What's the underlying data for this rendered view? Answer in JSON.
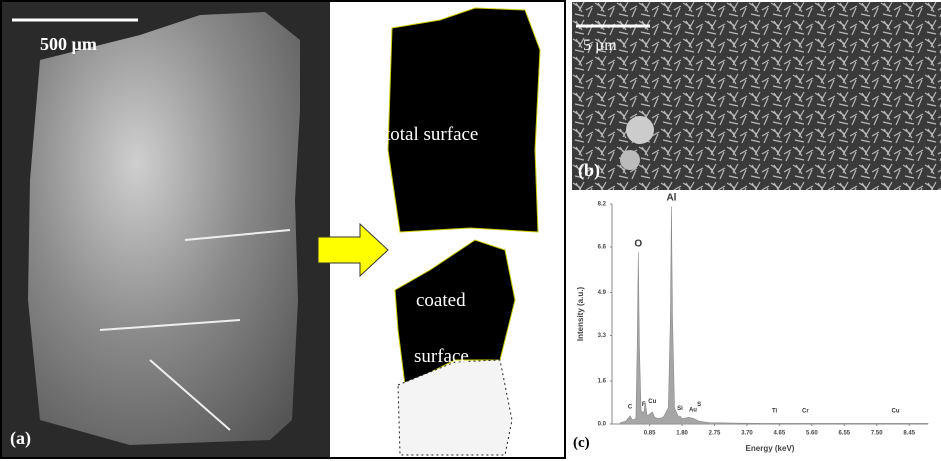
{
  "panel_a": {
    "scale_bar": "500 µm",
    "label": "(a)"
  },
  "segmentation": {
    "top_label": "total surface",
    "bottom_label_1": "coated",
    "bottom_label_2": "surface"
  },
  "panel_b": {
    "scale_bar": "5 µm",
    "label": "(b)"
  },
  "chart_data": {
    "type": "area",
    "panel_label": "(c)",
    "x_label": "Energy (keV)",
    "y_label": "Intensity (a.u.)",
    "color": "#a6a6a6",
    "x": [
      0,
      0.15,
      0.28,
      0.35,
      0.45,
      0.49,
      0.52,
      0.55,
      0.6,
      0.68,
      0.72,
      0.78,
      0.93,
      1.0,
      1.1,
      1.25,
      1.4,
      1.46,
      1.49,
      1.52,
      1.58,
      1.7,
      1.74,
      1.8,
      2.0,
      2.15,
      2.3,
      2.6,
      3.5,
      4.5,
      5.4,
      6.5,
      7.5,
      8.0,
      9.0
    ],
    "values": [
      0.05,
      0.1,
      0.3,
      0.15,
      0.2,
      3.0,
      6.4,
      3.0,
      0.5,
      0.4,
      0.8,
      0.3,
      0.45,
      0.25,
      0.2,
      0.25,
      0.6,
      4.0,
      8.1,
      4.0,
      0.6,
      0.25,
      0.3,
      0.2,
      0.25,
      0.2,
      0.1,
      0.05,
      0.03,
      0.02,
      0.02,
      0.02,
      0.02,
      0.02,
      0.02
    ],
    "peaks": [
      {
        "label": "C",
        "energy": 0.28,
        "height": 0.35
      },
      {
        "label": "O",
        "energy": 0.52,
        "height": 6.4
      },
      {
        "label": "F",
        "energy": 0.68,
        "height": 0.45
      },
      {
        "label": "Cu",
        "energy": 0.93,
        "height": 0.55
      },
      {
        "label": "Al",
        "energy": 1.49,
        "height": 8.1
      },
      {
        "label": "Si",
        "energy": 1.74,
        "height": 0.3
      },
      {
        "label": "Au",
        "energy": 2.12,
        "height": 0.25
      },
      {
        "label": "S",
        "energy": 2.3,
        "height": 0.45
      },
      {
        "label": "Ti",
        "energy": 4.51,
        "height": 0.2
      },
      {
        "label": "Cr",
        "energy": 5.41,
        "height": 0.2
      },
      {
        "label": "Cu",
        "energy": 8.05,
        "height": 0.2
      }
    ],
    "xlim": [
      -0.25,
      9.0
    ],
    "ylim": [
      0,
      8.2
    ],
    "xticks": [
      0.85,
      {
        "value": 1.8,
        "label": "1.80"
      },
      2.75,
      {
        "value": 3.7,
        "label": "3.70"
      },
      4.65,
      {
        "value": 5.6,
        "label": "5.60"
      },
      6.55,
      {
        "value": 7.5,
        "label": "7.50"
      },
      8.45
    ],
    "yticks": [
      {
        "value": 0,
        "label": "0.0"
      },
      1.6,
      3.3,
      4.9,
      6.6,
      8.2
    ]
  }
}
